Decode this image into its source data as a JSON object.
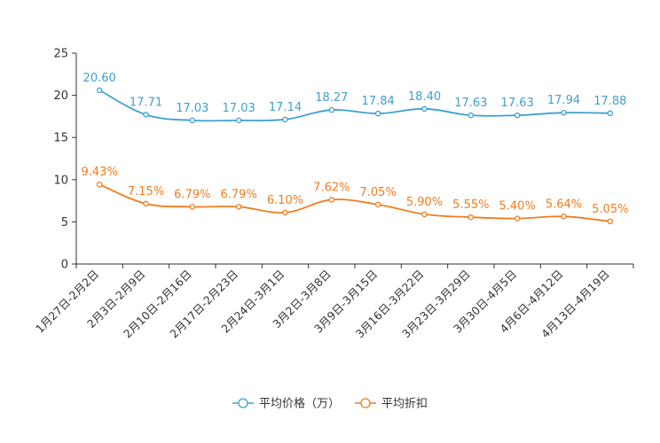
{
  "chart_data": {
    "type": "line",
    "title": "",
    "xlabel": "",
    "ylabel": "",
    "ylim": [
      0,
      25
    ],
    "yticks": [
      0,
      5,
      10,
      15,
      20,
      25
    ],
    "grid": false,
    "legend_position": "bottom-center",
    "categories": [
      "1月27日-2月2日",
      "2月3日-2月9日",
      "2月10日-2月16日",
      "2月17日-2月23日",
      "2月24日-3月1日",
      "3月2日-3月8日",
      "3月9日-3月15日",
      "3月16日-3月22日",
      "3月23日-3月29日",
      "3月30日-4月5日",
      "4月6日-4月12日",
      "4月13日-4月19日"
    ],
    "series": [
      {
        "name": "平均价格（万）",
        "color": "#3fa0cf",
        "values": [
          20.6,
          17.71,
          17.03,
          17.03,
          17.14,
          18.27,
          17.84,
          18.4,
          17.63,
          17.63,
          17.94,
          17.88
        ],
        "labels": [
          "20.60",
          "17.71",
          "17.03",
          "17.03",
          "17.14",
          "18.27",
          "17.84",
          "18.40",
          "17.63",
          "17.63",
          "17.94",
          "17.88"
        ]
      },
      {
        "name": "平均折扣",
        "color": "#f07c1e",
        "values": [
          9.43,
          7.15,
          6.79,
          6.79,
          6.1,
          7.62,
          7.05,
          5.9,
          5.55,
          5.4,
          5.64,
          5.05
        ],
        "labels": [
          "9.43%",
          "7.15%",
          "6.79%",
          "6.79%",
          "6.10%",
          "7.62%",
          "7.05%",
          "5.90%",
          "5.55%",
          "5.40%",
          "5.64%",
          "5.05%"
        ]
      }
    ]
  }
}
